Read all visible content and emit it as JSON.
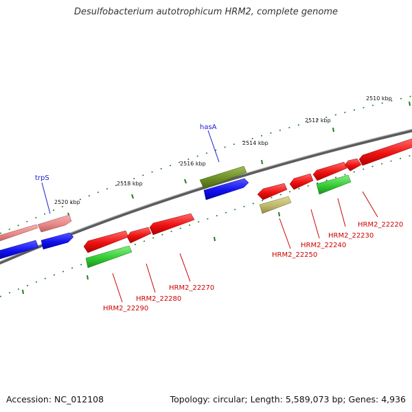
{
  "title": "Desulfobacterium autotrophicum HRM2, complete genome",
  "footer": {
    "accession": "Accession: NC_012108",
    "summary": "Topology: circular; Length: 5,589,073 bp; Genes: 4,936"
  },
  "scale_labels": [
    "2510 kbp",
    "2512 kbp",
    "2514 kbp",
    "2516 kbp",
    "2518 kbp",
    "2520 kbp"
  ],
  "gene_labels": {
    "trpS": "trpS",
    "hasA": "hasA",
    "hrm2_22220": "HRM2_22220",
    "hrm2_22230": "HRM2_22230",
    "hrm2_22240": "HRM2_22240",
    "hrm2_22250": "HRM2_22250",
    "hrm2_22270": "HRM2_22270",
    "hrm2_22280": "HRM2_22280",
    "hrm2_22290": "HRM2_22290"
  },
  "colors": {
    "backbone": "#7a7a7a",
    "tick": "#1f7a1f",
    "gene_red": "#ee1111",
    "gene_pink": "#e88888",
    "gene_blue": "#1111ee",
    "gene_green": "#33cc33",
    "gene_olive": "#6b8e23",
    "gene_khaki": "#bdb76b",
    "label_red": "#cc0000",
    "label_blue": "#1a1acc"
  }
}
